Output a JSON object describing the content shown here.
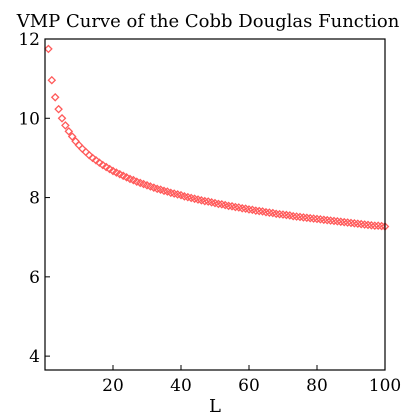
{
  "chart_data": {
    "type": "scatter",
    "title": "VMP Curve of the Cobb Douglas Function",
    "xlabel": "L",
    "ylabel": "",
    "xlim": [
      0,
      100
    ],
    "ylim": [
      3.65,
      12
    ],
    "xticks": [
      20,
      40,
      60,
      80,
      100
    ],
    "yticks": [
      4,
      6,
      8,
      10,
      12
    ],
    "grid": false,
    "legend": "none",
    "marker": "diamond",
    "color": "#ff5a5a",
    "series": [
      {
        "x": [
          1,
          2,
          3,
          4,
          5,
          6,
          7,
          8,
          9,
          10,
          11,
          12,
          13,
          14,
          15,
          16,
          17,
          18,
          19,
          20,
          21,
          22,
          23,
          24,
          25,
          26,
          27,
          28,
          29,
          30,
          31,
          32,
          33,
          34,
          35,
          36,
          37,
          38,
          39,
          40,
          41,
          42,
          43,
          44,
          45,
          46,
          47,
          48,
          49,
          50,
          51,
          52,
          53,
          54,
          55,
          56,
          57,
          58,
          59,
          60,
          61,
          62,
          63,
          64,
          65,
          66,
          67,
          68,
          69,
          70,
          71,
          72,
          73,
          74,
          75,
          76,
          77,
          78,
          79,
          80,
          81,
          82,
          83,
          84,
          85,
          86,
          87,
          88,
          89,
          90,
          91,
          92,
          93,
          94,
          95,
          96,
          97,
          98,
          99,
          100
        ],
        "y": [
          11.75,
          10.96,
          10.53,
          10.23,
          10.0,
          9.82,
          9.67,
          9.54,
          9.42,
          9.32,
          9.23,
          9.15,
          9.07,
          9.0,
          8.94,
          8.88,
          8.82,
          8.77,
          8.72,
          8.67,
          8.63,
          8.59,
          8.55,
          8.51,
          8.47,
          8.44,
          8.4,
          8.37,
          8.34,
          8.31,
          8.28,
          8.25,
          8.22,
          8.2,
          8.17,
          8.15,
          8.12,
          8.1,
          8.08,
          8.06,
          8.03,
          8.01,
          7.99,
          7.97,
          7.95,
          7.93,
          7.91,
          7.9,
          7.88,
          7.86,
          7.84,
          7.83,
          7.81,
          7.79,
          7.78,
          7.76,
          7.75,
          7.73,
          7.72,
          7.7,
          7.69,
          7.67,
          7.66,
          7.65,
          7.63,
          7.62,
          7.61,
          7.59,
          7.58,
          7.57,
          7.56,
          7.55,
          7.53,
          7.52,
          7.51,
          7.5,
          7.49,
          7.48,
          7.47,
          7.46,
          7.45,
          7.44,
          7.43,
          7.42,
          7.41,
          7.4,
          7.39,
          7.38,
          7.37,
          7.36,
          7.35,
          7.34,
          7.33,
          7.32,
          7.31,
          7.3,
          7.29,
          7.29,
          7.28,
          7.27
        ]
      }
    ]
  }
}
